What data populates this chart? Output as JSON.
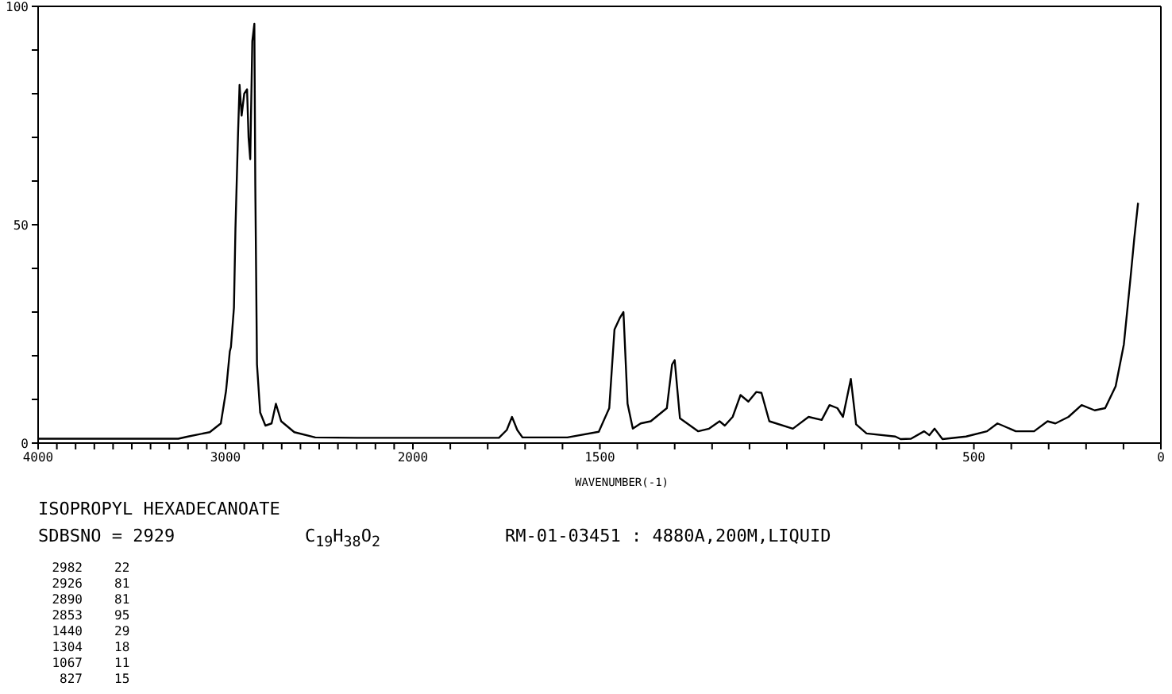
{
  "chart_data": [
    {
      "type": "line",
      "title": "ISOPROPYL HEXADECANOATE",
      "annotations": [
        "SDBSNO = 2929",
        "C$_{19}$H$_{38}$O$_{2}$",
        "RM-01-03451 : 4880A,200M,LIQUID",
        "2982 22",
        "2926 81",
        "2890 81",
        "2853 95",
        "1440 29",
        "1304 18",
        "1067 11",
        "827 15"
      ],
      "x": [
        4000,
        3252,
        3200,
        3084,
        3025,
        2997,
        2977,
        2971,
        2955,
        2947,
        2933,
        2925,
        2914,
        2900,
        2885,
        2877,
        2868,
        2857,
        2846,
        2841,
        2832,
        2815,
        2787,
        2754,
        2731,
        2703,
        2633,
        2521,
        2300,
        2000
      ],
      "values": [
        1,
        1,
        1.5,
        2.5,
        4.5,
        12,
        21,
        22,
        31,
        49,
        71,
        82,
        75,
        80,
        81,
        70,
        65,
        92,
        96,
        59,
        18,
        7,
        4,
        4.5,
        9,
        5,
        2.5,
        1.3,
        1.2,
        1.2
      ],
      "color": "#000000",
      "grid": false,
      "legend": false,
      "xlim": [
        4000,
        2000
      ],
      "xticks": [
        4000,
        {
          "value": 3900,
          "label": null
        },
        {
          "value": 3800,
          "label": null
        },
        {
          "value": 3700,
          "label": null
        },
        {
          "value": 3600,
          "label": null
        },
        {
          "value": 3500,
          "label": null
        },
        {
          "value": 3400,
          "label": null
        },
        {
          "value": 3300,
          "label": null
        },
        {
          "value": 3200,
          "label": null
        },
        {
          "value": 3100,
          "label": null
        },
        3000,
        {
          "value": 2900,
          "label": null
        },
        {
          "value": 2800,
          "label": null
        },
        {
          "value": 2700,
          "label": null
        },
        {
          "value": 2600,
          "label": null
        },
        {
          "value": 2500,
          "label": null
        },
        {
          "value": 2400,
          "label": null
        },
        {
          "value": 2300,
          "label": null
        },
        {
          "value": 2200,
          "label": null
        },
        {
          "value": 2100,
          "label": null
        },
        2000
      ],
      "ylim": [
        0,
        100
      ],
      "yticks": [
        0,
        {
          "value": 10,
          "label": null
        },
        {
          "value": 20,
          "label": null
        },
        {
          "value": 30,
          "label": null
        },
        {
          "value": 40,
          "label": null
        },
        50,
        {
          "value": 60,
          "label": null
        },
        {
          "value": 70,
          "label": null
        },
        {
          "value": 80,
          "label": null
        },
        {
          "value": 90,
          "label": null
        },
        100
      ],
      "marker": "none",
      "line_style": "solid"
    },
    {
      "type": "line",
      "xlabel": "WAVENUMBER(-1)",
      "x": [
        2000,
        1770,
        1749,
        1735,
        1721,
        1707,
        1587,
        1503,
        1475,
        1461,
        1447,
        1437,
        1426,
        1412,
        1391,
        1364,
        1321,
        1307,
        1300,
        1286,
        1237,
        1208,
        1180,
        1166,
        1145,
        1124,
        1103,
        1082,
        1068,
        1047,
        984,
        942,
        907,
        886,
        865,
        850,
        829,
        815,
        787,
        710,
        696,
        668,
        633,
        619,
        605,
        584,
        521,
        465,
        437,
        423,
        388,
        339,
        303,
        282,
        247,
        212,
        177,
        149,
        121,
        99,
        81,
        71,
        61
      ],
      "values": [
        1.2,
        1.2,
        3,
        6,
        3,
        1.3,
        1.3,
        2.6,
        8,
        26,
        28.6,
        30,
        9,
        3.3,
        4.5,
        5,
        8,
        18,
        19,
        5.7,
        2.7,
        3.3,
        5,
        4,
        6,
        11,
        9.5,
        11.7,
        11.5,
        5,
        3.3,
        6,
        5.3,
        8.7,
        8,
        6,
        14.7,
        4.3,
        2.2,
        1.5,
        0.9,
        1,
        2.7,
        1.8,
        3.3,
        0.9,
        1.5,
        2.7,
        4.5,
        4,
        2.7,
        2.7,
        5,
        4.5,
        6,
        8.7,
        7.5,
        8,
        13,
        22.6,
        38,
        47,
        55
      ],
      "color": "#000000",
      "grid": false,
      "legend": false,
      "xlim": [
        2000,
        0
      ],
      "xticks": [
        {
          "value": 1900,
          "label": null
        },
        {
          "value": 1800,
          "label": null
        },
        {
          "value": 1700,
          "label": null
        },
        {
          "value": 1600,
          "label": null
        },
        1500,
        {
          "value": 1400,
          "label": null
        },
        {
          "value": 1300,
          "label": null
        },
        {
          "value": 1200,
          "label": null
        },
        {
          "value": 1100,
          "label": null
        },
        {
          "value": 1000,
          "label": null
        },
        {
          "value": 900,
          "label": null
        },
        {
          "value": 800,
          "label": null
        },
        {
          "value": 700,
          "label": null
        },
        {
          "value": 600,
          "label": null
        },
        500,
        {
          "value": 400,
          "label": null
        },
        {
          "value": 300,
          "label": null
        },
        {
          "value": 200,
          "label": null
        },
        {
          "value": 100,
          "label": null
        },
        0
      ],
      "ylim": [
        0,
        100
      ],
      "tick_labels": "x",
      "marker": "none",
      "line_style": "solid"
    }
  ]
}
